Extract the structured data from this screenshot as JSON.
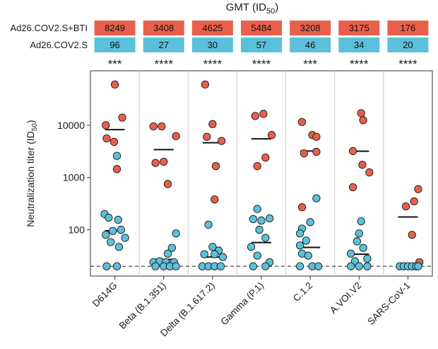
{
  "chart_data": {
    "type": "scatter",
    "title": "GMT (ID50)",
    "title_main": "GMT (ID",
    "title_sub": "50",
    "title_close": ")",
    "ylabel": "Neutralization titer (ID50)",
    "ylabel_main": "Neutralization titer (ID",
    "ylabel_sub": "50",
    "ylabel_close": ")",
    "yscale": "log",
    "ylim": [
      13,
      110000
    ],
    "yticks": [
      100,
      1000,
      10000
    ],
    "ytick_labels": [
      "100",
      "1000",
      "10000"
    ],
    "limit_of_detection": 20,
    "grid": "vertical separators between variants",
    "categories": [
      "D614G",
      "Beta (B.1.351)",
      "Delta (B.1.617.2)",
      "Gamma (P.1)",
      "C.1.2",
      "A.VOI.V2",
      "SARS-CoV-1"
    ],
    "significance": [
      "***",
      "****",
      "****",
      "****",
      "***",
      "****",
      "****"
    ],
    "colors": {
      "bti": "#e8604c",
      "s": "#5bc0d9",
      "point_edge": "#1a1a1a",
      "frame": "#333333",
      "separator": "#c8c8c8"
    },
    "gmt_table": {
      "rows": [
        {
          "name": "Ad26.COV2.S+BTI",
          "color": "#e8604c",
          "values": [
            "8249",
            "3408",
            "4625",
            "5484",
            "3208",
            "3175",
            "176"
          ]
        },
        {
          "name": "Ad26.COV2.S",
          "color": "#5bc0d9",
          "values": [
            "96",
            "27",
            "30",
            "57",
            "46",
            "34",
            "20"
          ]
        }
      ]
    },
    "series": [
      {
        "name": "Ad26.COV2.S+BTI",
        "color": "#e8604c",
        "gmt": [
          8249,
          3408,
          4625,
          5484,
          3208,
          3175,
          176
        ],
        "points": [
          [
            {
              "dx": 0.0,
              "v": 60000
            },
            {
              "dx": 0.18,
              "v": 14000
            },
            {
              "dx": -0.22,
              "v": 10000
            },
            {
              "dx": -0.2,
              "v": 5600
            },
            {
              "dx": -0.02,
              "v": 4800
            },
            {
              "dx": 0.05,
              "v": 1450
            }
          ],
          [
            {
              "dx": -0.25,
              "v": 9500
            },
            {
              "dx": -0.05,
              "v": 9500
            },
            {
              "dx": 0.3,
              "v": 6200
            },
            {
              "dx": -0.2,
              "v": 1900
            },
            {
              "dx": 0.0,
              "v": 2000
            },
            {
              "dx": 0.1,
              "v": 750
            }
          ],
          [
            {
              "dx": -0.18,
              "v": 60000
            },
            {
              "dx": 0.0,
              "v": 10500
            },
            {
              "dx": -0.14,
              "v": 6000
            },
            {
              "dx": 0.22,
              "v": 5000
            },
            {
              "dx": 0.08,
              "v": 1650
            },
            {
              "dx": 0.05,
              "v": 380
            }
          ],
          [
            {
              "dx": -0.15,
              "v": 15000
            },
            {
              "dx": 0.05,
              "v": 16500
            },
            {
              "dx": 0.25,
              "v": 6500
            },
            {
              "dx": 0.1,
              "v": 2400
            },
            {
              "dx": -0.1,
              "v": 1650
            }
          ],
          [
            {
              "dx": -0.2,
              "v": 11500
            },
            {
              "dx": 0.05,
              "v": 6500
            },
            {
              "dx": 0.15,
              "v": 6000
            },
            {
              "dx": -0.15,
              "v": 2900
            },
            {
              "dx": 0.15,
              "v": 3100
            },
            {
              "dx": -0.2,
              "v": 270
            }
          ],
          [
            {
              "dx": 0.05,
              "v": 17000
            },
            {
              "dx": 0.1,
              "v": 12500
            },
            {
              "dx": -0.15,
              "v": 3200
            },
            {
              "dx": 0.08,
              "v": 1750
            },
            {
              "dx": 0.25,
              "v": 1250
            },
            {
              "dx": -0.15,
              "v": 650
            }
          ],
          [
            {
              "dx": 0.25,
              "v": 600
            },
            {
              "dx": 0.15,
              "v": 350
            },
            {
              "dx": -0.05,
              "v": 280
            },
            {
              "dx": 0.1,
              "v": 80
            },
            {
              "dx": 0.28,
              "v": 24
            }
          ]
        ]
      },
      {
        "name": "Ad26.COV2.S",
        "color": "#5bc0d9",
        "gmt": [
          96,
          27,
          30,
          57,
          46,
          34,
          20
        ],
        "points": [
          [
            {
              "dx": -0.25,
              "v": 200
            },
            {
              "dx": -0.15,
              "v": 170
            },
            {
              "dx": 0.05,
              "v": 2600
            },
            {
              "dx": 0.08,
              "v": 155
            },
            {
              "dx": -0.05,
              "v": 95
            },
            {
              "dx": 0.15,
              "v": 100
            },
            {
              "dx": -0.22,
              "v": 80
            },
            {
              "dx": 0.25,
              "v": 70
            },
            {
              "dx": -0.1,
              "v": 58
            },
            {
              "dx": 0.1,
              "v": 47
            },
            {
              "dx": -0.2,
              "v": 20
            },
            {
              "dx": 0.05,
              "v": 20
            }
          ],
          [
            {
              "dx": 0.3,
              "v": 85
            },
            {
              "dx": 0.2,
              "v": 45
            },
            {
              "dx": 0.1,
              "v": 35
            },
            {
              "dx": -0.25,
              "v": 24
            },
            {
              "dx": -0.1,
              "v": 25
            },
            {
              "dx": 0.05,
              "v": 24
            },
            {
              "dx": 0.25,
              "v": 24
            },
            {
              "dx": -0.2,
              "v": 20
            },
            {
              "dx": 0.0,
              "v": 20
            },
            {
              "dx": 0.15,
              "v": 20
            },
            {
              "dx": 0.3,
              "v": 20
            }
          ],
          [
            {
              "dx": -0.1,
              "v": 125
            },
            {
              "dx": 0.0,
              "v": 47
            },
            {
              "dx": 0.15,
              "v": 40
            },
            {
              "dx": -0.2,
              "v": 34
            },
            {
              "dx": 0.05,
              "v": 34
            },
            {
              "dx": 0.25,
              "v": 30
            },
            {
              "dx": -0.25,
              "v": 20
            },
            {
              "dx": -0.1,
              "v": 20
            },
            {
              "dx": 0.05,
              "v": 20
            },
            {
              "dx": 0.2,
              "v": 20
            }
          ],
          [
            {
              "dx": -0.1,
              "v": 250
            },
            {
              "dx": 0.2,
              "v": 165
            },
            {
              "dx": -0.2,
              "v": 160
            },
            {
              "dx": 0.0,
              "v": 150
            },
            {
              "dx": -0.05,
              "v": 100
            },
            {
              "dx": 0.1,
              "v": 70
            },
            {
              "dx": -0.25,
              "v": 47
            },
            {
              "dx": -0.1,
              "v": 32
            },
            {
              "dx": 0.2,
              "v": 24
            },
            {
              "dx": -0.2,
              "v": 20
            },
            {
              "dx": 0.1,
              "v": 20
            }
          ],
          [
            {
              "dx": 0.15,
              "v": 400
            },
            {
              "dx": 0.0,
              "v": 140
            },
            {
              "dx": -0.2,
              "v": 105
            },
            {
              "dx": -0.25,
              "v": 85
            },
            {
              "dx": -0.1,
              "v": 62
            },
            {
              "dx": -0.25,
              "v": 50
            },
            {
              "dx": -0.2,
              "v": 35
            },
            {
              "dx": -0.05,
              "v": 32
            },
            {
              "dx": -0.25,
              "v": 20
            },
            {
              "dx": 0.05,
              "v": 20
            },
            {
              "dx": 0.2,
              "v": 20
            }
          ],
          [
            {
              "dx": 0.05,
              "v": 145
            },
            {
              "dx": 0.0,
              "v": 85
            },
            {
              "dx": -0.05,
              "v": 60
            },
            {
              "dx": 0.1,
              "v": 45
            },
            {
              "dx": -0.2,
              "v": 35
            },
            {
              "dx": 0.2,
              "v": 28
            },
            {
              "dx": -0.1,
              "v": 25
            },
            {
              "dx": 0.2,
              "v": 20
            },
            {
              "dx": -0.2,
              "v": 20
            },
            {
              "dx": 0.0,
              "v": 20
            }
          ],
          [
            {
              "dx": -0.2,
              "v": 20
            },
            {
              "dx": -0.1,
              "v": 20
            },
            {
              "dx": 0.0,
              "v": 20
            },
            {
              "dx": 0.1,
              "v": 20
            },
            {
              "dx": 0.2,
              "v": 20
            },
            {
              "dx": 0.25,
              "v": 20
            }
          ]
        ]
      }
    ]
  }
}
